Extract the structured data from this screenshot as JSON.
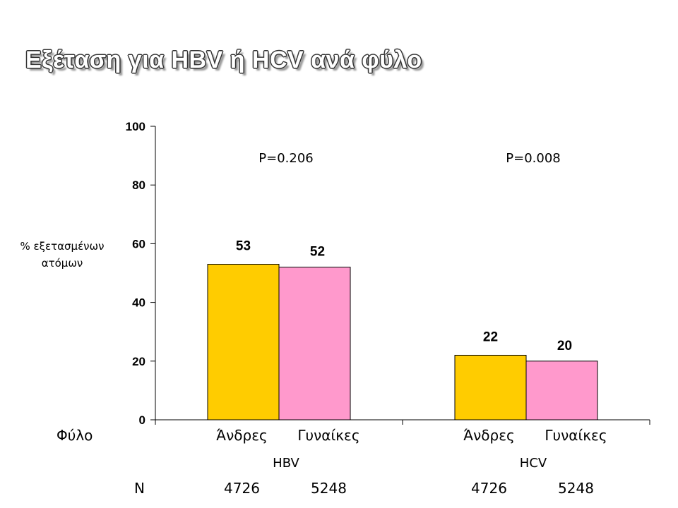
{
  "title": "Εξέταση για HBV ή HCV ανά φύλο",
  "chart_data": {
    "type": "bar",
    "ylabel_lines": [
      "% εξετασμένων",
      "ατόμων"
    ],
    "ylim": [
      0,
      100
    ],
    "yticks": [
      0,
      20,
      40,
      60,
      80,
      100
    ],
    "grid": false,
    "row_label_sex": "Φύλο",
    "row_label_n": "N",
    "categories": [
      "HBV",
      "HCV"
    ],
    "subcategories": [
      "Άνδρες",
      "Γυναίκες"
    ],
    "series": [
      {
        "name": "Άνδρες",
        "color": "#FFCC00",
        "values": [
          53,
          22
        ],
        "n": [
          "4726",
          "4726"
        ]
      },
      {
        "name": "Γυναίκες",
        "color": "#FF99CC",
        "values": [
          52,
          20
        ],
        "n": [
          "5248",
          "5248"
        ]
      }
    ],
    "data_labels": [
      [
        "53",
        "22"
      ],
      [
        "52",
        "20"
      ]
    ],
    "p_values": [
      "P=0.206",
      "P=0.008"
    ]
  }
}
